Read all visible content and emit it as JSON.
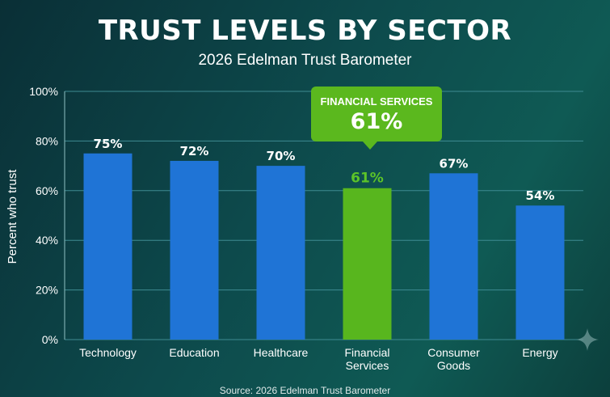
{
  "header": {
    "title": "TRUST LEVELS BY SECTOR",
    "subtitle": "2026 Edelman Trust Barometer"
  },
  "callout": {
    "label": "FINANCIAL SERVICES",
    "value": "61%",
    "color": "#5bb81e"
  },
  "footer": {
    "source": "Source: 2026 Edelman Trust Barometer"
  },
  "colors": {
    "bar": "#1f74d6",
    "highlight_bar": "#58b61e",
    "highlight_label": "#5cc428",
    "grid": "#3f8b92"
  },
  "chart_data": {
    "type": "bar",
    "title": "TRUST LEVELS BY SECTOR",
    "subtitle": "2026 Edelman Trust Barometer",
    "xlabel": "",
    "ylabel": "Percent who trust",
    "ylim": [
      0,
      100
    ],
    "yticks": [
      "0%",
      "20%",
      "40%",
      "60%",
      "80%",
      "100%"
    ],
    "grid": true,
    "categories": [
      [
        "Technology"
      ],
      [
        "Education"
      ],
      [
        "Healthcare"
      ],
      [
        "Financial",
        "Services"
      ],
      [
        "Consumer",
        "Goods"
      ],
      [
        "Energy"
      ]
    ],
    "values": [
      75,
      72,
      70,
      61,
      67,
      54
    ],
    "data_labels": [
      "75%",
      "72%",
      "70%",
      "61%",
      "67%",
      "54%"
    ],
    "highlight_index": 3
  }
}
